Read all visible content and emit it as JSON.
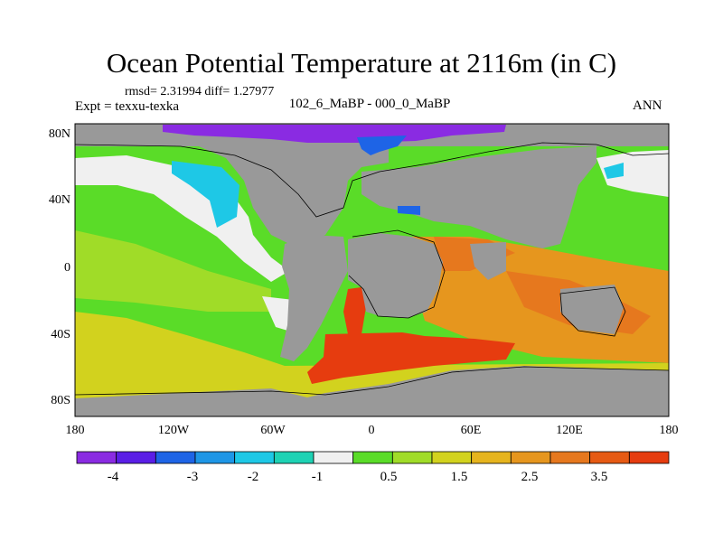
{
  "title": "Ocean Potential Temperature at 2116m (in C)",
  "stats": "rmsd= 2.31994 diff= 1.27977",
  "experiment": "Expt = texxu-texka",
  "period": "102_6_MaBP - 000_0_MaBP",
  "season": "ANN",
  "axes": {
    "y_ticks": [
      "80N",
      "40N",
      "0",
      "40S",
      "80S"
    ],
    "x_ticks": [
      "180",
      "120W",
      "60W",
      "0",
      "60E",
      "120E",
      "180"
    ]
  },
  "colorbar": {
    "labels": [
      "-4",
      "-3",
      "-2",
      "-1",
      "0.5",
      "1.5",
      "2.5",
      "3.5"
    ],
    "colors": [
      "#8a2be2",
      "#5a1ee6",
      "#1e64e6",
      "#1e96e6",
      "#1ec8e6",
      "#1ed2b4",
      "#f0f0f0",
      "#5adc28",
      "#a0dc28",
      "#d2d21e",
      "#e6b41e",
      "#e6961e",
      "#e6781e",
      "#e65a14",
      "#e63c0f"
    ]
  },
  "map_colors": {
    "land": "#999999",
    "purple": "#8a2be2",
    "blue": "#1e64e6",
    "cyan": "#1ec8e6",
    "white": "#f0f0f0",
    "green": "#5adc28",
    "lightgreen": "#a0dc28",
    "yellow": "#d2d21e",
    "orange": "#e6961e",
    "darkorange": "#e6781e",
    "red": "#e63c0f"
  }
}
